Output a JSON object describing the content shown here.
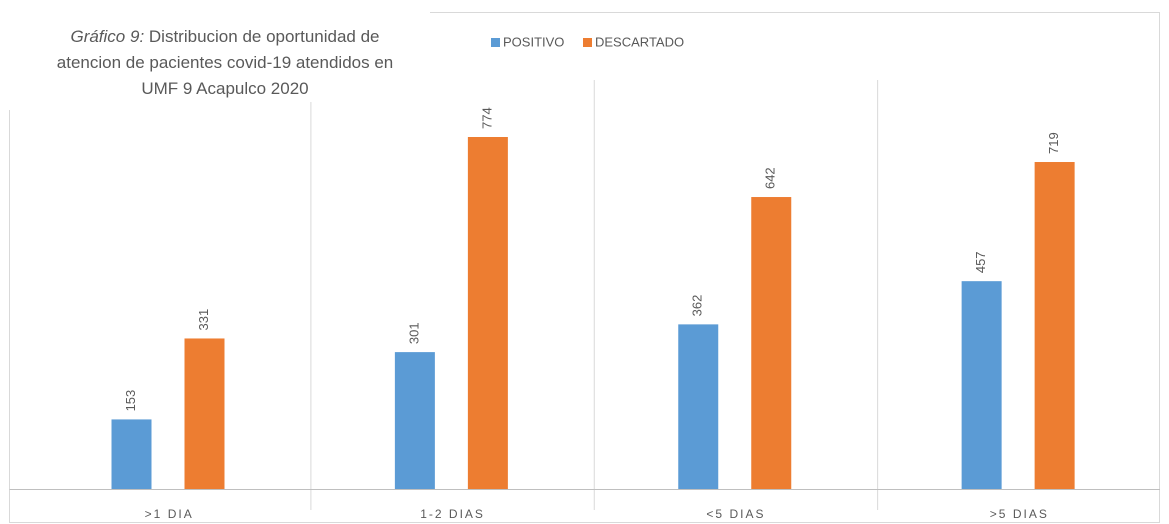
{
  "chart_data": {
    "type": "bar",
    "title_label": "Gráfico 9:",
    "title": "Distribucion de oportunidad de atencion de pacientes covid-19 atendidos en UMF 9 Acapulco 2020",
    "categories": [
      ">1 DIA",
      "1-2 DIAS",
      "<5 DIAS",
      ">5 DIAS"
    ],
    "series": [
      {
        "name": "POSITIVO",
        "color": "#5b9bd5",
        "values": [
          153,
          301,
          362,
          457
        ]
      },
      {
        "name": "DESCARTADO",
        "color": "#ed7d31",
        "values": [
          331,
          774,
          642,
          719
        ]
      }
    ],
    "legend": "top"
  }
}
